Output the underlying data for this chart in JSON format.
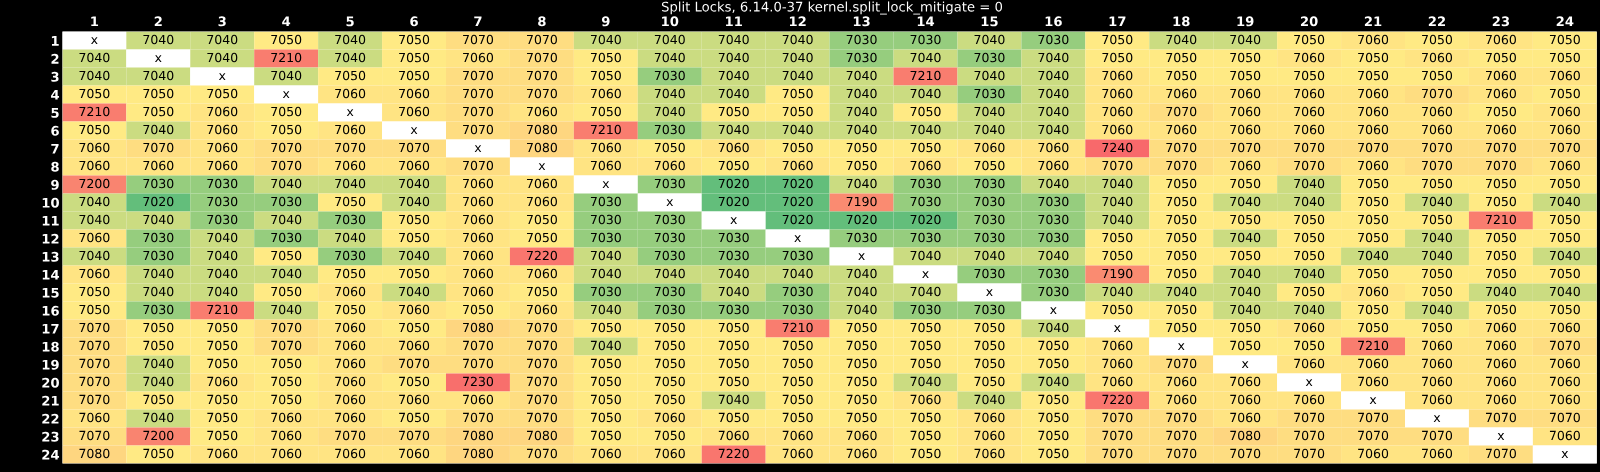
{
  "chart_data": {
    "type": "heatmap",
    "title": "Split Locks, 6.14.0-37 kernel.split_lock_mitigate = 0",
    "categories": [
      "1",
      "2",
      "3",
      "4",
      "5",
      "6",
      "7",
      "8",
      "9",
      "10",
      "11",
      "12",
      "13",
      "14",
      "15",
      "16",
      "17",
      "18",
      "19",
      "20",
      "21",
      "22",
      "23",
      "24"
    ],
    "y_categories": [
      "1",
      "2",
      "3",
      "4",
      "5",
      "6",
      "7",
      "8",
      "9",
      "10",
      "11",
      "12",
      "13",
      "14",
      "15",
      "16",
      "17",
      "18",
      "19",
      "20",
      "21",
      "22",
      "23",
      "24"
    ],
    "colors": [
      "#63be7b",
      "#ffeb84",
      "#f8696b"
    ],
    "cells": [
      [
        null,
        7040,
        7040,
        7050,
        7040,
        7050,
        7070,
        7070,
        7040,
        7040,
        7040,
        7040,
        7030,
        7030,
        7040,
        7030,
        7050,
        7040,
        7040,
        7050,
        7060,
        7050,
        7060,
        7050
      ],
      [
        7040,
        null,
        7040,
        7210,
        7040,
        7050,
        7060,
        7070,
        7050,
        7040,
        7040,
        7040,
        7030,
        7040,
        7030,
        7040,
        7050,
        7050,
        7050,
        7060,
        7050,
        7060,
        7050,
        7050
      ],
      [
        7040,
        7040,
        null,
        7040,
        7050,
        7050,
        7070,
        7070,
        7050,
        7030,
        7040,
        7040,
        7040,
        7210,
        7040,
        7040,
        7060,
        7050,
        7050,
        7050,
        7050,
        7050,
        7060,
        7060
      ],
      [
        7050,
        7050,
        7050,
        null,
        7060,
        7060,
        7070,
        7070,
        7060,
        7040,
        7040,
        7050,
        7040,
        7040,
        7030,
        7040,
        7060,
        7060,
        7060,
        7060,
        7060,
        7070,
        7060,
        7050
      ],
      [
        7210,
        7050,
        7060,
        7050,
        null,
        7060,
        7070,
        7060,
        7050,
        7040,
        7050,
        7050,
        7040,
        7050,
        7040,
        7040,
        7060,
        7070,
        7060,
        7060,
        7060,
        7060,
        7050,
        7060
      ],
      [
        7050,
        7040,
        7060,
        7050,
        7060,
        null,
        7070,
        7080,
        7210,
        7030,
        7040,
        7040,
        7040,
        7040,
        7040,
        7040,
        7060,
        7060,
        7060,
        7060,
        7060,
        7060,
        7060,
        7060
      ],
      [
        7060,
        7070,
        7060,
        7070,
        7070,
        7070,
        null,
        7080,
        7060,
        7050,
        7060,
        7050,
        7050,
        7050,
        7060,
        7060,
        7240,
        7070,
        7070,
        7070,
        7070,
        7070,
        7070,
        7070
      ],
      [
        7060,
        7060,
        7060,
        7070,
        7060,
        7060,
        7070,
        null,
        7060,
        7060,
        7050,
        7060,
        7050,
        7060,
        7050,
        7060,
        7070,
        7070,
        7060,
        7070,
        7060,
        7070,
        7070,
        7060
      ],
      [
        7200,
        7030,
        7030,
        7040,
        7040,
        7040,
        7060,
        7060,
        null,
        7030,
        7020,
        7020,
        7040,
        7030,
        7030,
        7040,
        7040,
        7050,
        7050,
        7040,
        7050,
        7050,
        7050,
        7050
      ],
      [
        7040,
        7020,
        7030,
        7030,
        7050,
        7040,
        7060,
        7060,
        7030,
        null,
        7020,
        7020,
        7190,
        7030,
        7030,
        7030,
        7040,
        7050,
        7040,
        7040,
        7050,
        7040,
        7050,
        7040
      ],
      [
        7040,
        7040,
        7030,
        7040,
        7030,
        7050,
        7060,
        7050,
        7030,
        7030,
        null,
        7020,
        7020,
        7020,
        7030,
        7030,
        7040,
        7050,
        7050,
        7050,
        7050,
        7050,
        7210,
        7050
      ],
      [
        7060,
        7030,
        7040,
        7030,
        7040,
        7050,
        7060,
        7050,
        7030,
        7030,
        7030,
        null,
        7030,
        7030,
        7030,
        7030,
        7050,
        7050,
        7040,
        7050,
        7050,
        7040,
        7050,
        7050
      ],
      [
        7040,
        7030,
        7040,
        7050,
        7030,
        7040,
        7060,
        7220,
        7040,
        7030,
        7030,
        7030,
        null,
        7040,
        7040,
        7040,
        7050,
        7050,
        7050,
        7050,
        7040,
        7040,
        7050,
        7040
      ],
      [
        7060,
        7040,
        7040,
        7040,
        7050,
        7050,
        7060,
        7060,
        7040,
        7040,
        7040,
        7040,
        7040,
        null,
        7030,
        7030,
        7190,
        7050,
        7040,
        7040,
        7050,
        7050,
        7050,
        7050
      ],
      [
        7050,
        7040,
        7040,
        7050,
        7060,
        7040,
        7060,
        7050,
        7030,
        7030,
        7040,
        7030,
        7040,
        7040,
        null,
        7030,
        7040,
        7040,
        7040,
        7050,
        7060,
        7050,
        7040,
        7040
      ],
      [
        7050,
        7030,
        7210,
        7040,
        7050,
        7060,
        7050,
        7060,
        7040,
        7030,
        7030,
        7030,
        7040,
        7030,
        7030,
        null,
        7050,
        7050,
        7040,
        7040,
        7050,
        7040,
        7050,
        7050
      ],
      [
        7070,
        7050,
        7050,
        7070,
        7060,
        7050,
        7080,
        7070,
        7050,
        7050,
        7050,
        7210,
        7050,
        7050,
        7050,
        7040,
        null,
        7050,
        7050,
        7060,
        7050,
        7050,
        7060,
        7060
      ],
      [
        7070,
        7050,
        7050,
        7070,
        7060,
        7060,
        7070,
        7070,
        7040,
        7050,
        7050,
        7050,
        7050,
        7050,
        7050,
        7050,
        7060,
        null,
        7050,
        7050,
        7210,
        7060,
        7060,
        7070
      ],
      [
        7070,
        7040,
        7050,
        7050,
        7060,
        7070,
        7070,
        7070,
        7050,
        7050,
        7050,
        7050,
        7050,
        7050,
        7050,
        7050,
        7060,
        7070,
        null,
        7060,
        7060,
        7060,
        7060,
        7060
      ],
      [
        7070,
        7040,
        7060,
        7050,
        7060,
        7050,
        7230,
        7070,
        7050,
        7050,
        7050,
        7050,
        7050,
        7040,
        7050,
        7040,
        7060,
        7060,
        7060,
        null,
        7060,
        7060,
        7060,
        7060
      ],
      [
        7070,
        7050,
        7050,
        7050,
        7060,
        7060,
        7060,
        7070,
        7050,
        7050,
        7040,
        7050,
        7050,
        7060,
        7040,
        7050,
        7220,
        7060,
        7060,
        7060,
        null,
        7060,
        7060,
        7060
      ],
      [
        7060,
        7040,
        7050,
        7060,
        7060,
        7050,
        7070,
        7070,
        7050,
        7060,
        7050,
        7050,
        7050,
        7050,
        7060,
        7050,
        7070,
        7070,
        7060,
        7070,
        7070,
        null,
        7070,
        7070
      ],
      [
        7070,
        7200,
        7050,
        7060,
        7070,
        7070,
        7080,
        7080,
        7050,
        7050,
        7060,
        7060,
        7060,
        7050,
        7060,
        7050,
        7070,
        7070,
        7080,
        7070,
        7070,
        7070,
        null,
        7060
      ],
      [
        7080,
        7050,
        7060,
        7060,
        7060,
        7060,
        7080,
        7070,
        7060,
        7060,
        7220,
        7060,
        7060,
        7050,
        7060,
        7050,
        7070,
        7070,
        7070,
        7070,
        7060,
        7060,
        7070,
        null
      ]
    ],
    "cell_labels": [
      [
        "x",
        "7040",
        "7040",
        "7050",
        "7040",
        "7050",
        "7070",
        "7070",
        "7040",
        "7040",
        "7040",
        "7040",
        "7030",
        "7030",
        "7040",
        "7030",
        "7050",
        "7040",
        "7040",
        "7050",
        "7060",
        "7050",
        "7060",
        "7050"
      ],
      [
        "7040",
        "x",
        "7040",
        "7210",
        "7040",
        "7050",
        "7060",
        "7070",
        "7050",
        "7040",
        "7040",
        "7040",
        "7030",
        "7040",
        "7030",
        "7040",
        "7050",
        "7050",
        "7050",
        "7060",
        "7050",
        "7060",
        "7050",
        "7050"
      ],
      [
        "7040",
        "7040",
        "x",
        "7040",
        "7050",
        "7050",
        "7070",
        "7070",
        "7050",
        "7030",
        "7040",
        "7040",
        "7040",
        "7210",
        "7040",
        "7040",
        "7060",
        "7050",
        "7050",
        "7050",
        "7050",
        "7050",
        "7060",
        "7060"
      ],
      [
        "7050",
        "7050",
        "7050",
        "x",
        "7060",
        "7060",
        "7070",
        "7070",
        "7060",
        "7040",
        "7040",
        "7050",
        "7040",
        "7040",
        "7030",
        "7040",
        "7060",
        "7060",
        "7060",
        "7060",
        "7060",
        "7070",
        "7060",
        "7050"
      ],
      [
        "7210",
        "7050",
        "7060",
        "7050",
        "x",
        "7060",
        "7070",
        "7060",
        "7050",
        "7040",
        "7050",
        "7050",
        "7040",
        "7050",
        "7040",
        "7040",
        "7060",
        "7070",
        "7060",
        "7060",
        "7060",
        "7060",
        "7050",
        "7060"
      ],
      [
        "7050",
        "7040",
        "7060",
        "7050",
        "7060",
        "x",
        "7070",
        "7080",
        "7210",
        "7030",
        "7040",
        "7040",
        "7040",
        "7040",
        "7040",
        "7040",
        "7060",
        "7060",
        "7060",
        "7060",
        "7060",
        "7060",
        "7060",
        "7060"
      ],
      [
        "7060",
        "7070",
        "7060",
        "7070",
        "7070",
        "7070",
        "x",
        "7080",
        "7060",
        "7050",
        "7060",
        "7050",
        "7050",
        "7050",
        "7060",
        "7060",
        "7240",
        "7070",
        "7070",
        "7070",
        "7070",
        "7070",
        "7070",
        "7070"
      ],
      [
        "7060",
        "7060",
        "7060",
        "7070",
        "7060",
        "7060",
        "7070",
        "x",
        "7060",
        "7060",
        "7050",
        "7060",
        "7050",
        "7060",
        "7050",
        "7060",
        "7070",
        "7070",
        "7060",
        "7070",
        "7060",
        "7070",
        "7070",
        "7060"
      ],
      [
        "7200",
        "7030",
        "7030",
        "7040",
        "7040",
        "7040",
        "7060",
        "7060",
        "x",
        "7030",
        "7020",
        "7020",
        "7040",
        "7030",
        "7030",
        "7040",
        "7040",
        "7050",
        "7050",
        "7040",
        "7050",
        "7050",
        "7050",
        "7050"
      ],
      [
        "7040",
        "7020",
        "7030",
        "7030",
        "7050",
        "7040",
        "7060",
        "7060",
        "7030",
        "x",
        "7020",
        "7020",
        "7190",
        "7030",
        "7030",
        "7030",
        "7040",
        "7050",
        "7040",
        "7040",
        "7050",
        "7040",
        "7050",
        "7040"
      ],
      [
        "7040",
        "7040",
        "7030",
        "7040",
        "7030",
        "7050",
        "7060",
        "7050",
        "7030",
        "7030",
        "x",
        "7020",
        "7020",
        "7020",
        "7030",
        "7030",
        "7040",
        "7050",
        "7050",
        "7050",
        "7050",
        "7050",
        "7210",
        "7050"
      ],
      [
        "7060",
        "7030",
        "7040",
        "7030",
        "7040",
        "7050",
        "7060",
        "7050",
        "7030",
        "7030",
        "7030",
        "x",
        "7030",
        "7030",
        "7030",
        "7030",
        "7050",
        "7050",
        "7040",
        "7050",
        "7050",
        "7040",
        "7050",
        "7050"
      ],
      [
        "7040",
        "7030",
        "7040",
        "7050",
        "7030",
        "7040",
        "7060",
        "7220",
        "7040",
        "7030",
        "7030",
        "7030",
        "x",
        "7040",
        "7040",
        "7040",
        "7050",
        "7050",
        "7050",
        "7050",
        "7040",
        "7040",
        "7050",
        "7040"
      ],
      [
        "7060",
        "7040",
        "7040",
        "7040",
        "7050",
        "7050",
        "7060",
        "7060",
        "7040",
        "7040",
        "7040",
        "7040",
        "7040",
        "x",
        "7030",
        "7030",
        "7190",
        "7050",
        "7040",
        "7040",
        "7050",
        "7050",
        "7050",
        "7050"
      ],
      [
        "7050",
        "7040",
        "7040",
        "7050",
        "7060",
        "7040",
        "7060",
        "7050",
        "7030",
        "7030",
        "7040",
        "7030",
        "7040",
        "7040",
        "x",
        "7030",
        "7040",
        "7040",
        "7040",
        "7050",
        "7060",
        "7050",
        "7040",
        "7040"
      ],
      [
        "7050",
        "7030",
        "7210",
        "7040",
        "7050",
        "7060",
        "7050",
        "7060",
        "7040",
        "7030",
        "7030",
        "7030",
        "7040",
        "7030",
        "7030",
        "x",
        "7050",
        "7050",
        "7040",
        "7040",
        "7050",
        "7040",
        "7050",
        "7050"
      ],
      [
        "7070",
        "7050",
        "7050",
        "7070",
        "7060",
        "7050",
        "7080",
        "7070",
        "7050",
        "7050",
        "7050",
        "7210",
        "7050",
        "7050",
        "7050",
        "7040",
        "x",
        "7050",
        "7050",
        "7060",
        "7050",
        "7050",
        "7060",
        "7060"
      ],
      [
        "7070",
        "7050",
        "7050",
        "7070",
        "7060",
        "7060",
        "7070",
        "7070",
        "7040",
        "7050",
        "7050",
        "7050",
        "7050",
        "7050",
        "7050",
        "7050",
        "7060",
        "x",
        "7050",
        "7050",
        "7210",
        "7060",
        "7060",
        "7070"
      ],
      [
        "7070",
        "7040",
        "7050",
        "7050",
        "7060",
        "7070",
        "7070",
        "7070",
        "7050",
        "7050",
        "7050",
        "7050",
        "7050",
        "7050",
        "7050",
        "7050",
        "7060",
        "7070",
        "x",
        "7060",
        "7060",
        "7060",
        "7060",
        "7060"
      ],
      [
        "7070",
        "7040",
        "7060",
        "7050",
        "7060",
        "7050",
        "7230",
        "7070",
        "7050",
        "7050",
        "7050",
        "7050",
        "7050",
        "7040",
        "7050",
        "7040",
        "7060",
        "7060",
        "7060",
        "x",
        "7060",
        "7060",
        "7060",
        "7060"
      ],
      [
        "7070",
        "7050",
        "7050",
        "7050",
        "7060",
        "7060",
        "7060",
        "7070",
        "7050",
        "7050",
        "7040",
        "7050",
        "7050",
        "7060",
        "7040",
        "7050",
        "7220",
        "7060",
        "7060",
        "7060",
        "x",
        "7060",
        "7060",
        "7060"
      ],
      [
        "7060",
        "7040",
        "7050",
        "7060",
        "7060",
        "7050",
        "7070",
        "7070",
        "7050",
        "7060",
        "7050",
        "7050",
        "7050",
        "7050",
        "7060",
        "7050",
        "7070",
        "7070",
        "7060",
        "7070",
        "7070",
        "x",
        "7070",
        "7070"
      ],
      [
        "7070",
        "7200",
        "7050",
        "7060",
        "7070",
        "7070",
        "7080",
        "7080",
        "7050",
        "7050",
        "7060",
        "7060",
        "7060",
        "7050",
        "7060",
        "7050",
        "7070",
        "7070",
        "7080",
        "7070",
        "7070",
        "7070",
        "x",
        "7060"
      ],
      [
        "7080",
        "7050",
        "7060",
        "7060",
        "7060",
        "7060",
        "7080",
        "7070",
        "7060",
        "7060",
        "7220",
        "7060",
        "7060",
        "7050",
        "7060",
        "7050",
        "7070",
        "7070",
        "7070",
        "7070",
        "7060",
        "7060",
        "7070",
        "x"
      ]
    ]
  }
}
